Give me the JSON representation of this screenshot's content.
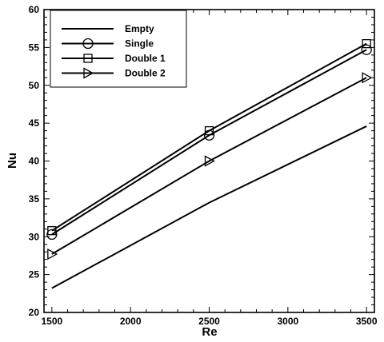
{
  "chart_data": {
    "type": "line",
    "title": "",
    "xlabel": "Re",
    "ylabel": "Nu",
    "xlim": [
      1450,
      3550
    ],
    "ylim": [
      20,
      60
    ],
    "xticks": [
      1500,
      2000,
      2500,
      3000,
      3500
    ],
    "yticks": [
      20,
      25,
      30,
      35,
      40,
      45,
      50,
      55,
      60
    ],
    "grid": false,
    "legend_position": "top-left",
    "x": [
      1500,
      2500,
      3500
    ],
    "series": [
      {
        "name": "Empty",
        "marker": "none",
        "values": [
          23.2,
          34.5,
          44.6
        ]
      },
      {
        "name": "Single",
        "marker": "circle",
        "values": [
          30.3,
          43.4,
          54.7
        ]
      },
      {
        "name": "Double 1",
        "marker": "square",
        "values": [
          30.8,
          44.0,
          55.5
        ]
      },
      {
        "name": "Double 2",
        "marker": "triangle-right",
        "values": [
          27.7,
          40.0,
          51.0
        ]
      }
    ]
  }
}
